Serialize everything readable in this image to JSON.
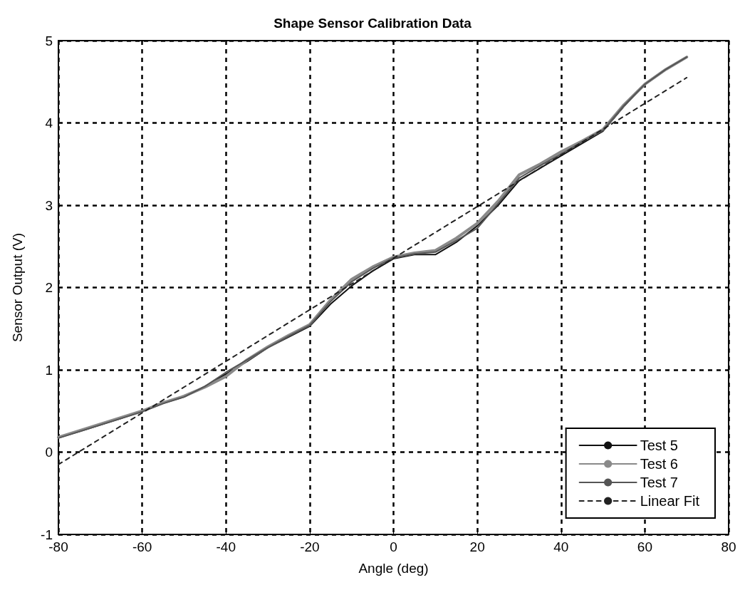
{
  "chart_data": {
    "type": "line",
    "title": "Shape Sensor Calibration Data",
    "xlabel": "Angle (deg)",
    "ylabel": "Sensor Output (V)",
    "xlim": [
      -80,
      80
    ],
    "xticks": [
      -80,
      -60,
      -40,
      -20,
      0,
      20,
      40,
      60,
      80
    ],
    "ylim": [
      -1,
      5
    ],
    "yticks": [
      -1,
      0,
      1,
      2,
      3,
      4,
      5
    ],
    "grid": true,
    "legend": "bottom right",
    "marker": "none",
    "x": [
      -80,
      -75,
      -70,
      -65,
      -60,
      -55,
      -50,
      -45,
      -40,
      -35,
      -30,
      -25,
      -20,
      -15,
      -10,
      -5,
      0,
      5,
      10,
      15,
      20,
      25,
      30,
      35,
      40,
      45,
      50,
      55,
      60,
      65,
      70
    ],
    "series": [
      {
        "name": "Test 5",
        "color": "#111111",
        "values": [
          0.18,
          0.25,
          0.33,
          0.41,
          0.5,
          0.6,
          0.67,
          0.8,
          0.95,
          1.1,
          1.27,
          1.4,
          1.53,
          1.8,
          2.02,
          2.2,
          2.35,
          2.4,
          2.4,
          2.55,
          2.75,
          3.0,
          3.3,
          3.45,
          3.6,
          3.75,
          3.9,
          4.2,
          4.47,
          4.65,
          4.8
        ]
      },
      {
        "name": "Test 6",
        "color": "#8a8a8a",
        "values": [
          0.18,
          0.26,
          0.34,
          0.42,
          0.5,
          0.6,
          0.68,
          0.79,
          0.92,
          1.12,
          1.28,
          1.42,
          1.55,
          1.85,
          2.1,
          2.25,
          2.37,
          2.42,
          2.45,
          2.6,
          2.78,
          3.05,
          3.37,
          3.5,
          3.65,
          3.78,
          3.92,
          4.22,
          4.47,
          4.65,
          4.8
        ]
      },
      {
        "name": "Test 7",
        "color": "#555555",
        "values": [
          0.17,
          0.25,
          0.33,
          0.41,
          0.49,
          0.59,
          0.67,
          0.8,
          0.97,
          1.12,
          1.27,
          1.41,
          1.54,
          1.83,
          2.07,
          2.23,
          2.36,
          2.41,
          2.43,
          2.57,
          2.72,
          3.02,
          3.33,
          3.48,
          3.62,
          3.77,
          3.91,
          4.21,
          4.47,
          4.65,
          4.8
        ]
      },
      {
        "name": "Linear Fit",
        "color": "#222222",
        "line_style": "dashed",
        "x": [
          -80,
          70
        ],
        "values": [
          -0.15,
          4.55
        ]
      }
    ]
  }
}
